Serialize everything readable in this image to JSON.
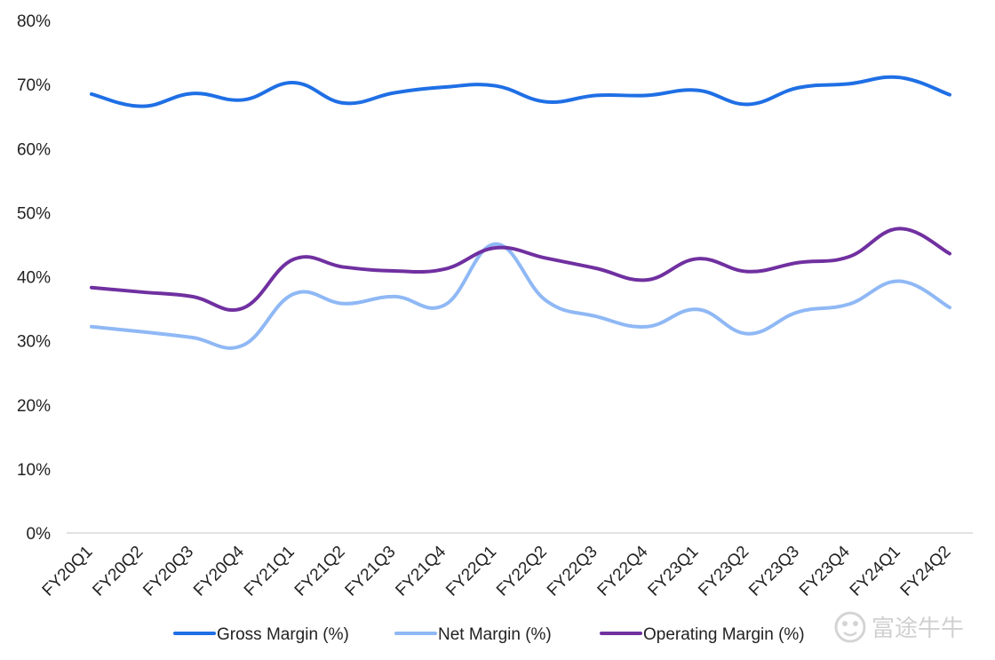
{
  "chart_data": {
    "type": "line",
    "categories": [
      "FY20Q1",
      "FY20Q2",
      "FY20Q3",
      "FY20Q4",
      "FY21Q1",
      "FY21Q2",
      "FY21Q3",
      "FY21Q4",
      "FY22Q1",
      "FY22Q2",
      "FY22Q3",
      "FY22Q4",
      "FY23Q1",
      "FY23Q2",
      "FY23Q3",
      "FY23Q4",
      "FY24Q1",
      "FY24Q2"
    ],
    "series": [
      {
        "name": "Gross Margin (%)",
        "color": "#1f6fe5",
        "values": [
          68.5,
          66.6,
          68.6,
          67.6,
          70.3,
          67.1,
          68.7,
          69.6,
          69.8,
          67.3,
          68.3,
          68.3,
          69.1,
          66.9,
          69.5,
          70.1,
          71.1,
          68.4
        ]
      },
      {
        "name": "Net Margin (%)",
        "color": "#8fb8f5",
        "values": [
          32.2,
          31.4,
          30.5,
          29.3,
          37.3,
          35.8,
          36.9,
          35.6,
          45.1,
          36.3,
          33.8,
          32.2,
          34.9,
          31.1,
          34.5,
          35.7,
          39.3,
          35.2
        ]
      },
      {
        "name": "Operating Margin (%)",
        "color": "#7030a0",
        "values": [
          38.3,
          37.6,
          36.9,
          35.1,
          42.7,
          41.5,
          40.9,
          41.2,
          44.5,
          42.9,
          41.3,
          39.5,
          42.8,
          40.8,
          42.2,
          43.1,
          47.5,
          43.6
        ]
      }
    ],
    "y_ticks": [
      "0%",
      "10%",
      "20%",
      "30%",
      "40%",
      "50%",
      "60%",
      "70%",
      "80%"
    ],
    "ylim": [
      0,
      80
    ],
    "grid": false,
    "legend_position": "bottom"
  },
  "watermark": {
    "text": "富途牛牛",
    "icon": "futu-logo-icon"
  }
}
